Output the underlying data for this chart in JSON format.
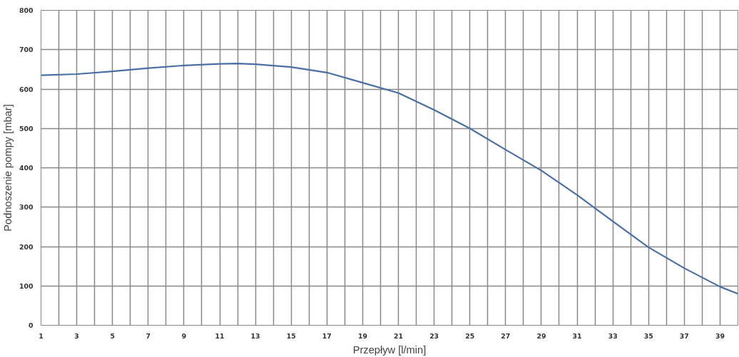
{
  "chart_data": {
    "type": "line",
    "xlabel": "Przepływ [l/min]",
    "ylabel": "Podnoszenie pompy [mbar]",
    "x": [
      1,
      3,
      5,
      7,
      9,
      11,
      12,
      13,
      15,
      17,
      19,
      21,
      23,
      25,
      27,
      29,
      31,
      33,
      35,
      37,
      39,
      40
    ],
    "series": [
      {
        "color": "#4a6fa5",
        "values": [
          635,
          638,
          645,
          653,
          660,
          664,
          665,
          663,
          656,
          642,
          616,
          590,
          547,
          500,
          446,
          393,
          331,
          264,
          198,
          145,
          98,
          80
        ]
      }
    ],
    "xlim": [
      1,
      40
    ],
    "ylim": [
      0,
      800
    ],
    "xticks": [
      1,
      {
        "value": 2,
        "label": null
      },
      3,
      {
        "value": 4,
        "label": null
      },
      5,
      {
        "value": 6,
        "label": null
      },
      7,
      {
        "value": 8,
        "label": null
      },
      9,
      {
        "value": 10,
        "label": null
      },
      11,
      {
        "value": 12,
        "label": null
      },
      13,
      {
        "value": 14,
        "label": null
      },
      15,
      {
        "value": 16,
        "label": null
      },
      17,
      {
        "value": 18,
        "label": null
      },
      19,
      {
        "value": 20,
        "label": null
      },
      21,
      {
        "value": 22,
        "label": null
      },
      23,
      {
        "value": 24,
        "label": null
      },
      25,
      {
        "value": 26,
        "label": null
      },
      27,
      {
        "value": 28,
        "label": null
      },
      29,
      {
        "value": 30,
        "label": null
      },
      31,
      {
        "value": 32,
        "label": null
      },
      33,
      {
        "value": 34,
        "label": null
      },
      35,
      {
        "value": 36,
        "label": null
      },
      37,
      {
        "value": 38,
        "label": null
      },
      39,
      {
        "value": 40,
        "label": null
      }
    ],
    "yticks": [
      0,
      100,
      200,
      300,
      400,
      500,
      600,
      700,
      800
    ],
    "grid": true,
    "marker": "none",
    "line_style": "solid"
  }
}
